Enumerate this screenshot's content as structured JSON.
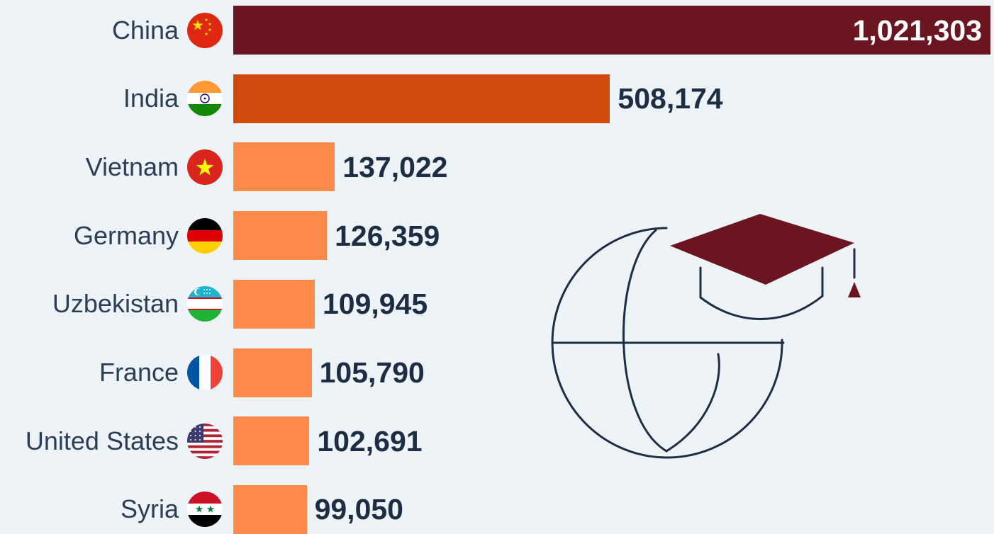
{
  "chart_data": {
    "type": "bar",
    "orientation": "horizontal",
    "categories": [
      "China",
      "India",
      "Vietnam",
      "Germany",
      "Uzbekistan",
      "France",
      "United States",
      "Syria"
    ],
    "values": [
      1021303,
      508174,
      137022,
      126359,
      109945,
      105790,
      102691,
      99050
    ],
    "value_labels": [
      "1,021,303",
      "508,174",
      "137,022",
      "126,359",
      "109,945",
      "105,790",
      "102,691",
      "99,050"
    ],
    "colors": [
      "#6b1520",
      "#d24a0c",
      "#ff8a4c",
      "#ff8a4c",
      "#ff8a4c",
      "#ff8a4c",
      "#ff8a4c",
      "#ff8a4c"
    ],
    "flag_icons": [
      "china-flag-icon",
      "india-flag-icon",
      "vietnam-flag-icon",
      "germany-flag-icon",
      "uzbekistan-flag-icon",
      "france-flag-icon",
      "united-states-flag-icon",
      "syria-flag-icon"
    ],
    "xlim": [
      0,
      1021303
    ],
    "grid": false,
    "legend": false
  },
  "decoration": {
    "icon": "globe-graduation-cap-icon",
    "cap_color": "#6b1520",
    "line_color": "#1d2d44"
  }
}
